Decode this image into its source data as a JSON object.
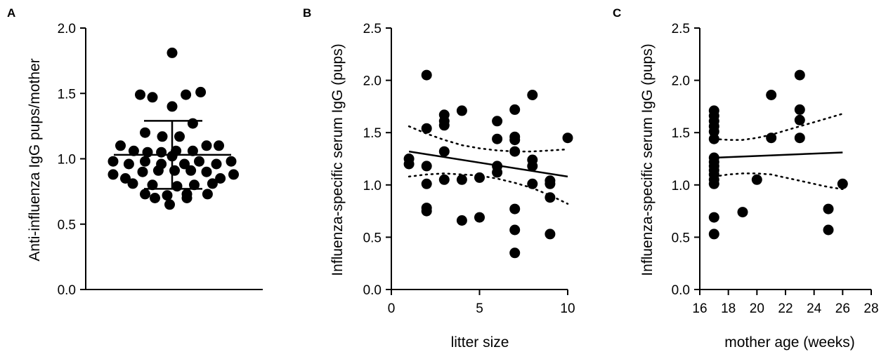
{
  "chart_data": [
    {
      "panel": "A",
      "type": "scatter",
      "xlabel": "",
      "ylabel": "Anti-influenza IgG pups/mother",
      "ylim": [
        0,
        2.0
      ],
      "yticks": [
        0.0,
        0.5,
        1.0,
        1.5,
        2.0
      ],
      "ytick_labels": [
        "0.0",
        "0.5",
        "1.0",
        "1.5",
        "2.0"
      ],
      "mean": 1.03,
      "sd_upper": 1.29,
      "sd_lower": 0.77,
      "points": [
        {
          "j": 0.0,
          "y": 1.81
        },
        {
          "j": -0.65,
          "y": 1.49
        },
        {
          "j": -0.4,
          "y": 1.47
        },
        {
          "j": 0.28,
          "y": 1.49
        },
        {
          "j": 0.58,
          "y": 1.51
        },
        {
          "j": 0.0,
          "y": 1.4
        },
        {
          "j": 0.42,
          "y": 1.27
        },
        {
          "j": -0.55,
          "y": 1.2
        },
        {
          "j": -0.2,
          "y": 1.17
        },
        {
          "j": 0.15,
          "y": 1.17
        },
        {
          "j": -1.05,
          "y": 1.1
        },
        {
          "j": -0.78,
          "y": 1.06
        },
        {
          "j": -0.5,
          "y": 1.05
        },
        {
          "j": -0.22,
          "y": 1.05
        },
        {
          "j": 0.08,
          "y": 1.06
        },
        {
          "j": 0.42,
          "y": 1.06
        },
        {
          "j": 0.7,
          "y": 1.1
        },
        {
          "j": 0.95,
          "y": 1.1
        },
        {
          "j": -1.2,
          "y": 0.98
        },
        {
          "j": -0.88,
          "y": 0.96
        },
        {
          "j": -0.55,
          "y": 0.98
        },
        {
          "j": -0.22,
          "y": 0.96
        },
        {
          "j": 0.0,
          "y": 1.02
        },
        {
          "j": 0.25,
          "y": 0.96
        },
        {
          "j": 0.55,
          "y": 0.98
        },
        {
          "j": 0.9,
          "y": 0.96
        },
        {
          "j": 1.2,
          "y": 0.98
        },
        {
          "j": -1.2,
          "y": 0.88
        },
        {
          "j": -0.95,
          "y": 0.85
        },
        {
          "j": -0.6,
          "y": 0.9
        },
        {
          "j": -0.28,
          "y": 0.91
        },
        {
          "j": 0.05,
          "y": 0.91
        },
        {
          "j": 0.38,
          "y": 0.91
        },
        {
          "j": 0.7,
          "y": 0.9
        },
        {
          "j": 0.98,
          "y": 0.85
        },
        {
          "j": 1.25,
          "y": 0.88
        },
        {
          "j": -0.8,
          "y": 0.81
        },
        {
          "j": -0.4,
          "y": 0.8
        },
        {
          "j": 0.1,
          "y": 0.79
        },
        {
          "j": 0.45,
          "y": 0.8
        },
        {
          "j": 0.82,
          "y": 0.81
        },
        {
          "j": -0.55,
          "y": 0.73
        },
        {
          "j": -0.1,
          "y": 0.72
        },
        {
          "j": 0.3,
          "y": 0.73
        },
        {
          "j": 0.72,
          "y": 0.73
        },
        {
          "j": -0.35,
          "y": 0.7
        },
        {
          "j": 0.3,
          "y": 0.7
        },
        {
          "j": -0.05,
          "y": 0.65
        }
      ]
    },
    {
      "panel": "B",
      "type": "scatter",
      "xlabel": "litter size",
      "ylabel": "Influenza-specific serum IgG (pups)",
      "xlim": [
        0,
        10
      ],
      "ylim": [
        0,
        2.5
      ],
      "xticks": [
        0,
        5,
        10
      ],
      "xtick_labels": [
        "0",
        "5",
        "10"
      ],
      "yticks": [
        0.0,
        0.5,
        1.0,
        1.5,
        2.0,
        2.5
      ],
      "ytick_labels": [
        "0.0",
        "0.5",
        "1.0",
        "1.5",
        "2.0",
        "2.5"
      ],
      "points": [
        {
          "x": 1,
          "y": 1.25
        },
        {
          "x": 1,
          "y": 1.2
        },
        {
          "x": 2,
          "y": 2.05
        },
        {
          "x": 2,
          "y": 1.54
        },
        {
          "x": 2,
          "y": 1.18
        },
        {
          "x": 2,
          "y": 1.01
        },
        {
          "x": 2,
          "y": 0.78
        },
        {
          "x": 2,
          "y": 0.75
        },
        {
          "x": 3,
          "y": 1.67
        },
        {
          "x": 3,
          "y": 1.61
        },
        {
          "x": 3,
          "y": 1.57
        },
        {
          "x": 3,
          "y": 1.32
        },
        {
          "x": 3,
          "y": 1.05
        },
        {
          "x": 4,
          "y": 1.71
        },
        {
          "x": 4,
          "y": 1.05
        },
        {
          "x": 4,
          "y": 0.66
        },
        {
          "x": 5,
          "y": 1.07
        },
        {
          "x": 5,
          "y": 0.69
        },
        {
          "x": 6,
          "y": 1.61
        },
        {
          "x": 6,
          "y": 1.44
        },
        {
          "x": 6,
          "y": 1.18
        },
        {
          "x": 6,
          "y": 1.12
        },
        {
          "x": 7,
          "y": 1.72
        },
        {
          "x": 7,
          "y": 1.46
        },
        {
          "x": 7,
          "y": 1.43
        },
        {
          "x": 7,
          "y": 1.32
        },
        {
          "x": 7,
          "y": 0.77
        },
        {
          "x": 7,
          "y": 0.57
        },
        {
          "x": 7,
          "y": 0.35
        },
        {
          "x": 8,
          "y": 1.86
        },
        {
          "x": 8,
          "y": 1.24
        },
        {
          "x": 8,
          "y": 1.18
        },
        {
          "x": 8,
          "y": 1.01
        },
        {
          "x": 9,
          "y": 1.04
        },
        {
          "x": 9,
          "y": 1.01
        },
        {
          "x": 9,
          "y": 0.88
        },
        {
          "x": 9,
          "y": 0.53
        },
        {
          "x": 10,
          "y": 1.45
        }
      ],
      "fit": {
        "x": [
          1,
          10
        ],
        "y": [
          1.32,
          1.08
        ]
      },
      "ci_upper": {
        "x": [
          1,
          2,
          3,
          4,
          5,
          6,
          7,
          8,
          9,
          10
        ],
        "y": [
          1.56,
          1.49,
          1.43,
          1.38,
          1.35,
          1.33,
          1.32,
          1.32,
          1.33,
          1.34
        ]
      },
      "ci_lower": {
        "x": [
          1,
          2,
          3,
          4,
          5,
          6,
          7,
          8,
          9,
          10
        ],
        "y": [
          1.08,
          1.1,
          1.11,
          1.1,
          1.09,
          1.06,
          1.02,
          0.97,
          0.9,
          0.82
        ]
      }
    },
    {
      "panel": "C",
      "type": "scatter",
      "xlabel": "mother age (weeks)",
      "ylabel": "Influenza-specific serum IgG (pups)",
      "xlim": [
        16,
        28
      ],
      "ylim": [
        0,
        2.5
      ],
      "xticks": [
        16,
        18,
        20,
        22,
        24,
        26,
        28
      ],
      "xtick_labels": [
        "16",
        "18",
        "20",
        "22",
        "24",
        "26",
        "28"
      ],
      "yticks": [
        0.0,
        0.5,
        1.0,
        1.5,
        2.0,
        2.5
      ],
      "ytick_labels": [
        "0.0",
        "0.5",
        "1.0",
        "1.5",
        "2.0",
        "2.5"
      ],
      "points": [
        {
          "x": 17,
          "y": 1.71
        },
        {
          "x": 17,
          "y": 1.66
        },
        {
          "x": 17,
          "y": 1.61
        },
        {
          "x": 17,
          "y": 1.56
        },
        {
          "x": 17,
          "y": 1.51
        },
        {
          "x": 17,
          "y": 1.44
        },
        {
          "x": 17,
          "y": 1.26
        },
        {
          "x": 17,
          "y": 1.22
        },
        {
          "x": 17,
          "y": 1.18
        },
        {
          "x": 17,
          "y": 1.14
        },
        {
          "x": 17,
          "y": 1.1
        },
        {
          "x": 17,
          "y": 1.05
        },
        {
          "x": 17,
          "y": 1.01
        },
        {
          "x": 17,
          "y": 0.69
        },
        {
          "x": 17,
          "y": 0.53
        },
        {
          "x": 19,
          "y": 0.74
        },
        {
          "x": 20,
          "y": 1.05
        },
        {
          "x": 21,
          "y": 1.86
        },
        {
          "x": 21,
          "y": 1.45
        },
        {
          "x": 23,
          "y": 2.05
        },
        {
          "x": 23,
          "y": 1.72
        },
        {
          "x": 23,
          "y": 1.62
        },
        {
          "x": 23,
          "y": 1.45
        },
        {
          "x": 25,
          "y": 0.77
        },
        {
          "x": 25,
          "y": 0.57
        },
        {
          "x": 26,
          "y": 1.01
        }
      ],
      "fit": {
        "x": [
          17,
          26
        ],
        "y": [
          1.26,
          1.31
        ]
      },
      "ci_upper": {
        "x": [
          17,
          18,
          19,
          20,
          21,
          22,
          23,
          24,
          25,
          26
        ],
        "y": [
          1.44,
          1.43,
          1.43,
          1.45,
          1.48,
          1.52,
          1.56,
          1.6,
          1.64,
          1.68
        ]
      },
      "ci_lower": {
        "x": [
          17,
          18,
          19,
          20,
          21,
          22,
          23,
          24,
          25,
          26
        ],
        "y": [
          1.08,
          1.1,
          1.11,
          1.11,
          1.1,
          1.07,
          1.04,
          1.01,
          0.98,
          0.96
        ]
      }
    }
  ]
}
